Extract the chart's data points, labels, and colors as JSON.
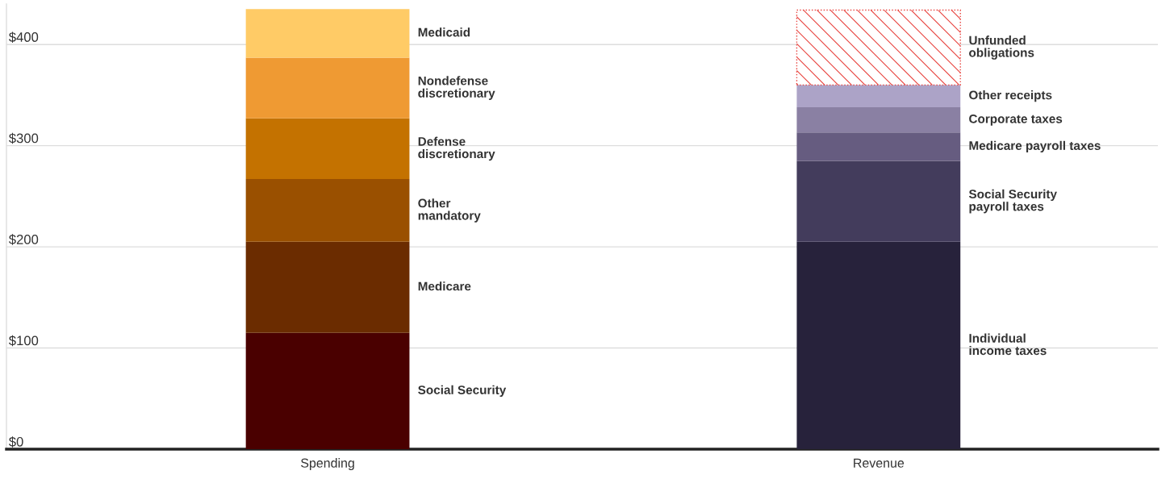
{
  "chart_data": {
    "type": "bar",
    "stacked": true,
    "categories": [
      "Spending",
      "Revenue"
    ],
    "series": [
      {
        "name": "Social Security",
        "color": "#4a0000",
        "values": [
          115,
          null
        ]
      },
      {
        "name": "Medicare",
        "color": "#6b2c00",
        "values": [
          90,
          null
        ]
      },
      {
        "name": "Other\nmandatory",
        "color": "#9a5000",
        "values": [
          62,
          null
        ]
      },
      {
        "name": "Defense\ndiscretionary",
        "color": "#c47200",
        "values": [
          60,
          null
        ]
      },
      {
        "name": "Nondefense\ndiscretionary",
        "color": "#ef9a33",
        "values": [
          60,
          null
        ]
      },
      {
        "name": "Medicaid",
        "color": "#ffcb66",
        "values": [
          48,
          null
        ]
      },
      {
        "name": "Individual\nincome taxes",
        "color": "#27223b",
        "values": [
          null,
          205
        ]
      },
      {
        "name": "Social Security\npayroll taxes",
        "color": "#433c5c",
        "values": [
          null,
          80
        ]
      },
      {
        "name": "Medicare payroll taxes",
        "color": "#665c80",
        "values": [
          null,
          28
        ]
      },
      {
        "name": "Corporate taxes",
        "color": "#8a80a3",
        "values": [
          null,
          25
        ]
      },
      {
        "name": "Other receipts",
        "color": "#aca3c7",
        "values": [
          null,
          22
        ]
      },
      {
        "name": "Unfunded\nobligations",
        "color": "#e8413c",
        "line_style": "dotted",
        "values": [
          null,
          74
        ]
      }
    ],
    "ylim": [
      0,
      440
    ],
    "yticks": [
      {
        "value": 0,
        "label": "$0"
      },
      {
        "value": 100,
        "label": "$100"
      },
      {
        "value": 200,
        "label": "$200"
      },
      {
        "value": 300,
        "label": "$300"
      },
      {
        "value": 400,
        "label": "$400"
      }
    ],
    "grid": "y",
    "legend": false
  }
}
